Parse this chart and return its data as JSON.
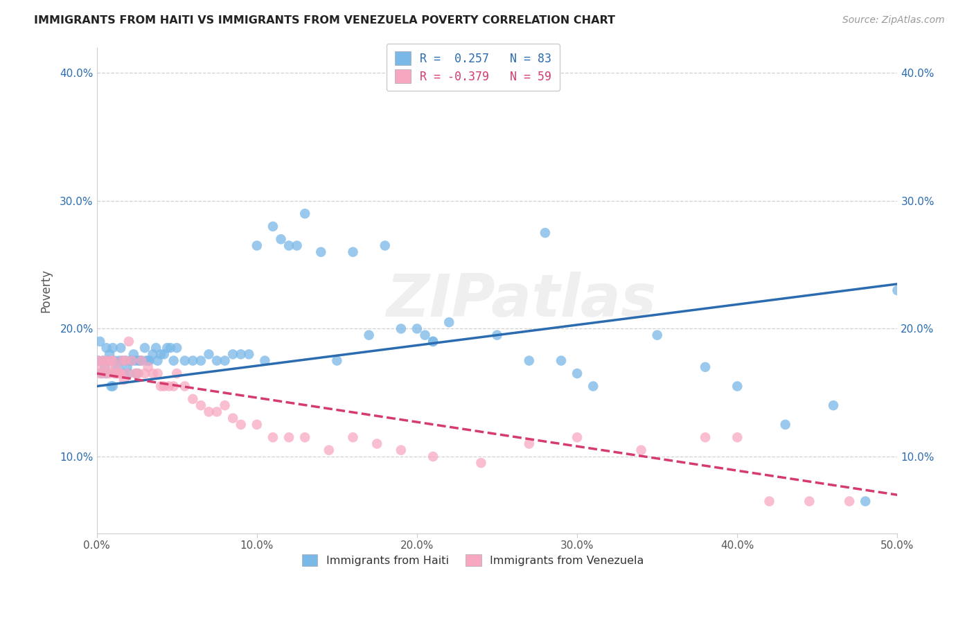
{
  "title": "IMMIGRANTS FROM HAITI VS IMMIGRANTS FROM VENEZUELA POVERTY CORRELATION CHART",
  "source": "Source: ZipAtlas.com",
  "ylabel": "Poverty",
  "xlim": [
    0.0,
    0.5
  ],
  "ylim": [
    0.04,
    0.42
  ],
  "xticks": [
    0.0,
    0.1,
    0.2,
    0.3,
    0.4,
    0.5
  ],
  "yticks": [
    0.1,
    0.2,
    0.3,
    0.4
  ],
  "xtick_labels": [
    "0.0%",
    "10.0%",
    "20.0%",
    "30.0%",
    "40.0%",
    "50.0%"
  ],
  "ytick_labels": [
    "10.0%",
    "20.0%",
    "30.0%",
    "40.0%"
  ],
  "haiti_color": "#7ab8e8",
  "venezuela_color": "#f7a8c0",
  "haiti_line_color": "#2b6cb0",
  "venezuela_line_color": "#d63b6e",
  "haiti_R": 0.257,
  "haiti_N": 83,
  "venezuela_R": -0.379,
  "venezuela_N": 59,
  "haiti_label": "Immigrants from Haiti",
  "venezuela_label": "Immigrants from Venezuela",
  "watermark_text": "ZIPatlas",
  "background_color": "#ffffff",
  "grid_color": "#cccccc",
  "haiti_x": [
    0.001,
    0.002,
    0.003,
    0.004,
    0.005,
    0.006,
    0.006,
    0.007,
    0.008,
    0.009,
    0.01,
    0.01,
    0.011,
    0.012,
    0.013,
    0.014,
    0.015,
    0.016,
    0.017,
    0.018,
    0.019,
    0.02,
    0.021,
    0.022,
    0.023,
    0.024,
    0.025,
    0.026,
    0.027,
    0.028,
    0.03,
    0.031,
    0.032,
    0.033,
    0.035,
    0.037,
    0.038,
    0.04,
    0.042,
    0.044,
    0.046,
    0.048,
    0.05,
    0.055,
    0.06,
    0.065,
    0.07,
    0.075,
    0.08,
    0.085,
    0.09,
    0.095,
    0.1,
    0.105,
    0.11,
    0.115,
    0.12,
    0.125,
    0.13,
    0.14,
    0.15,
    0.16,
    0.17,
    0.18,
    0.19,
    0.2,
    0.205,
    0.21,
    0.22,
    0.25,
    0.27,
    0.28,
    0.29,
    0.3,
    0.31,
    0.35,
    0.38,
    0.4,
    0.43,
    0.46,
    0.48,
    0.5,
    0.21
  ],
  "haiti_y": [
    0.175,
    0.19,
    0.165,
    0.175,
    0.17,
    0.185,
    0.165,
    0.175,
    0.18,
    0.155,
    0.185,
    0.155,
    0.175,
    0.165,
    0.17,
    0.175,
    0.185,
    0.175,
    0.165,
    0.175,
    0.17,
    0.165,
    0.175,
    0.175,
    0.18,
    0.175,
    0.165,
    0.175,
    0.175,
    0.175,
    0.185,
    0.175,
    0.175,
    0.175,
    0.18,
    0.185,
    0.175,
    0.18,
    0.18,
    0.185,
    0.185,
    0.175,
    0.185,
    0.175,
    0.175,
    0.175,
    0.18,
    0.175,
    0.175,
    0.18,
    0.18,
    0.18,
    0.265,
    0.175,
    0.28,
    0.27,
    0.265,
    0.265,
    0.29,
    0.26,
    0.175,
    0.26,
    0.195,
    0.265,
    0.2,
    0.2,
    0.195,
    0.19,
    0.205,
    0.195,
    0.175,
    0.275,
    0.175,
    0.165,
    0.155,
    0.195,
    0.17,
    0.155,
    0.125,
    0.14,
    0.065,
    0.23,
    0.19
  ],
  "venezuela_x": [
    0.001,
    0.002,
    0.003,
    0.004,
    0.005,
    0.006,
    0.007,
    0.008,
    0.009,
    0.01,
    0.011,
    0.012,
    0.013,
    0.014,
    0.015,
    0.016,
    0.017,
    0.018,
    0.019,
    0.02,
    0.022,
    0.024,
    0.026,
    0.028,
    0.03,
    0.032,
    0.035,
    0.038,
    0.04,
    0.042,
    0.045,
    0.048,
    0.05,
    0.055,
    0.06,
    0.065,
    0.07,
    0.075,
    0.08,
    0.085,
    0.09,
    0.1,
    0.11,
    0.12,
    0.13,
    0.145,
    0.16,
    0.175,
    0.19,
    0.21,
    0.24,
    0.27,
    0.3,
    0.34,
    0.38,
    0.4,
    0.42,
    0.445,
    0.47
  ],
  "venezuela_y": [
    0.175,
    0.165,
    0.17,
    0.175,
    0.165,
    0.175,
    0.17,
    0.165,
    0.175,
    0.175,
    0.165,
    0.17,
    0.165,
    0.165,
    0.165,
    0.175,
    0.16,
    0.175,
    0.165,
    0.19,
    0.175,
    0.165,
    0.165,
    0.175,
    0.165,
    0.17,
    0.165,
    0.165,
    0.155,
    0.155,
    0.155,
    0.155,
    0.165,
    0.155,
    0.145,
    0.14,
    0.135,
    0.135,
    0.14,
    0.13,
    0.125,
    0.125,
    0.115,
    0.115,
    0.115,
    0.105,
    0.115,
    0.11,
    0.105,
    0.1,
    0.095,
    0.11,
    0.115,
    0.105,
    0.115,
    0.115,
    0.065,
    0.065,
    0.065
  ]
}
